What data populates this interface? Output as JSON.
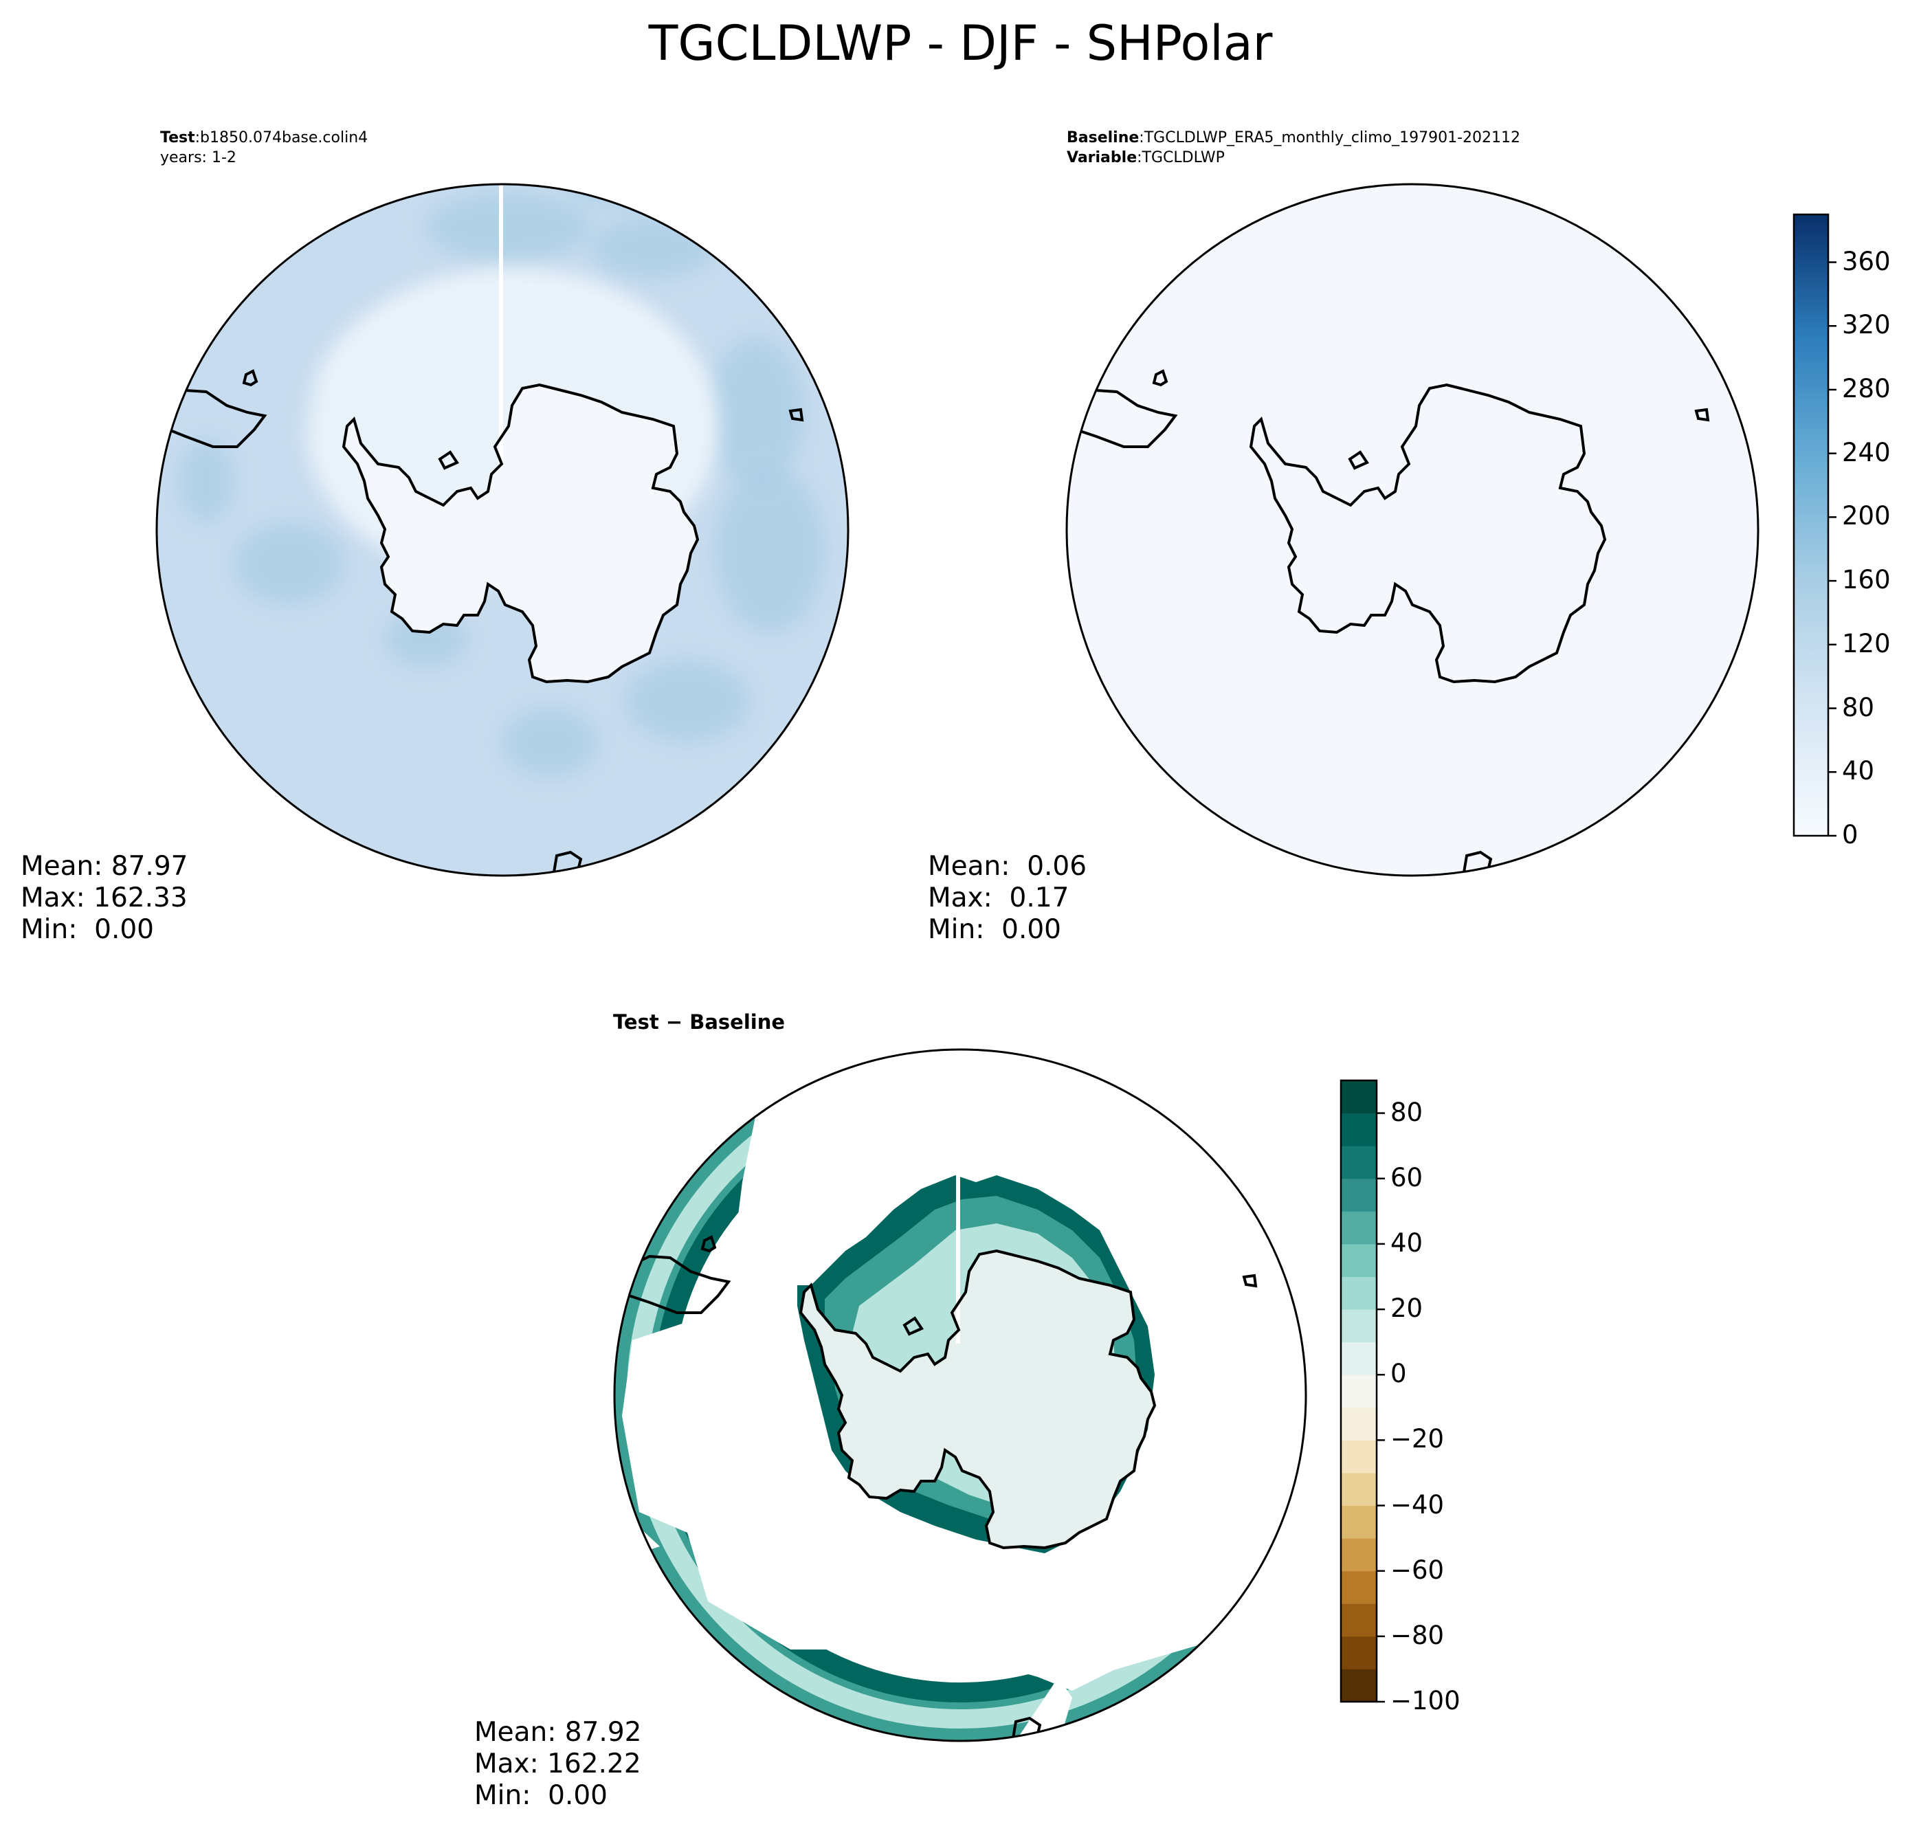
{
  "figure": {
    "title": "TGCLDLWP - DJF - SHPolar"
  },
  "panels": {
    "test": {
      "label_key": "Test",
      "label_value": "b1850.074base.colin4",
      "line2": "years: 1-2",
      "stats": [
        "Mean: 87.97",
        "Max: 162.33",
        "Min:  0.00"
      ]
    },
    "baseline": {
      "label_key": "Baseline",
      "label_value": "TGCLDLWP_ERA5_monthly_climo_197901-202112",
      "var_key": "Variable",
      "var_value": "TGCLDLWP",
      "stats": [
        "Mean:  0.06",
        "Max:  0.17",
        "Min:  0.00"
      ]
    },
    "diff": {
      "title": "Test − Baseline",
      "stats": [
        "Mean: 87.92",
        "Max: 162.22",
        "Min:  0.00"
      ]
    }
  },
  "colors": {
    "test_field": "#c8dcef",
    "test_field_dark": "#a9cde4",
    "baseline_field": "#f4f8fd",
    "diff_inner": "#e6f1ef",
    "diff_band": "#b6e3dc",
    "diff_mid": "#3b9f94",
    "diff_dark": "#01665e",
    "coastline": "#000000"
  },
  "chart_data": [
    {
      "type": "heatmap",
      "name": "Test",
      "projection": "south-polar-stereographic",
      "field_mean": 87.97,
      "field_max": 162.33,
      "field_min": 0.0,
      "colormap": "Blues",
      "colorbar": {
        "ticks": [
          0,
          40,
          80,
          120,
          160,
          200,
          240,
          280,
          320,
          360
        ],
        "range": [
          0,
          390
        ]
      }
    },
    {
      "type": "heatmap",
      "name": "Baseline",
      "projection": "south-polar-stereographic",
      "field_mean": 0.06,
      "field_max": 0.17,
      "field_min": 0.0,
      "colormap": "Blues",
      "colorbar": {
        "ticks": [
          0,
          40,
          80,
          120,
          160,
          200,
          240,
          280,
          320,
          360
        ],
        "range": [
          0,
          390
        ]
      }
    },
    {
      "type": "heatmap",
      "name": "Test − Baseline",
      "projection": "south-polar-stereographic",
      "field_mean": 87.92,
      "field_max": 162.22,
      "field_min": 0.0,
      "colormap": "BrBG",
      "colorbar": {
        "ticks": [
          -100,
          -80,
          -60,
          -40,
          -20,
          0,
          20,
          40,
          60,
          80
        ],
        "range": [
          -100,
          90
        ],
        "levels": [
          -100,
          -90,
          -80,
          -70,
          -60,
          -50,
          -40,
          -30,
          -20,
          -10,
          0,
          10,
          20,
          30,
          40,
          50,
          60,
          70,
          80,
          90
        ],
        "colors": [
          "#543005",
          "#7a4609",
          "#9a5d14",
          "#b77a27",
          "#cc9a48",
          "#dbb86d",
          "#e9d096",
          "#f3e3bf",
          "#f6efdd",
          "#f5f5f0",
          "#e3f2ef",
          "#c4e8e1",
          "#a0dad0",
          "#79c8bb",
          "#53ada2",
          "#31918a",
          "#127871",
          "#016259",
          "#004b3f"
        ]
      }
    }
  ]
}
